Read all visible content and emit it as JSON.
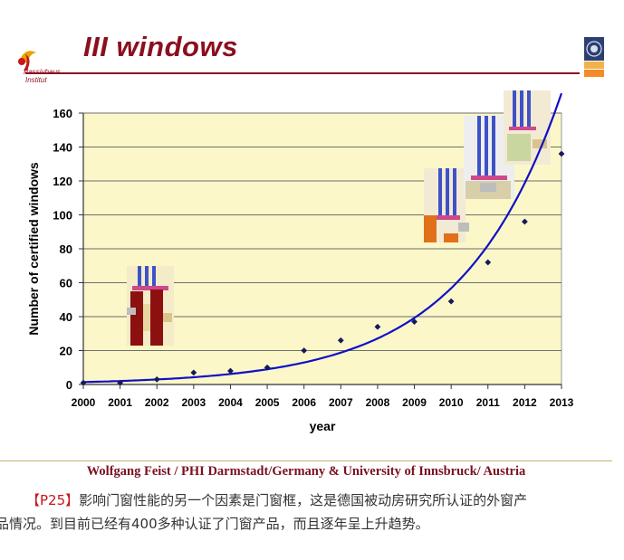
{
  "slide": {
    "title": "III windows",
    "logo_text_1": "Passivhaus",
    "logo_text_2": "Institut",
    "footer": "Wolfgang Feist / PHI Darmstadt/Germany & University of Innsbruck/ Austria"
  },
  "caption": {
    "tag": "【P25】",
    "line1_rest": "影响门窗性能的另一个因素是门窗框，这是德国被动房研究所认证的外窗产",
    "line2": "品情况。到目前已经有400多种认证了门窗产品，而且逐年呈上升趋势。"
  },
  "colors": {
    "title": "#8b0f1e",
    "plot_background": "#fbf7c8",
    "curve": "#1010c8",
    "points": "#141a5a",
    "caption_tag": "#c8161d"
  },
  "chart_data": {
    "type": "scatter",
    "title": "",
    "xlabel": "year",
    "ylabel": "Number of certified windows",
    "x": [
      2000,
      2001,
      2002,
      2003,
      2004,
      2005,
      2006,
      2007,
      2008,
      2009,
      2010,
      2011,
      2012,
      2013
    ],
    "y": [
      1,
      1,
      3,
      7,
      8,
      10,
      20,
      26,
      34,
      37,
      49,
      72,
      96,
      136
    ],
    "xlim": [
      2000,
      2013
    ],
    "ylim": [
      0,
      160
    ],
    "xticks": [
      "2000",
      "2001",
      "2002",
      "2003",
      "2004",
      "2005",
      "2006",
      "2007",
      "2008",
      "2009",
      "2010",
      "2011",
      "2012",
      "2013"
    ],
    "yticks": [
      "0",
      "20",
      "40",
      "60",
      "80",
      "100",
      "120",
      "140",
      "160"
    ],
    "trend_line": "exponential fit",
    "grid": "horizontal"
  }
}
